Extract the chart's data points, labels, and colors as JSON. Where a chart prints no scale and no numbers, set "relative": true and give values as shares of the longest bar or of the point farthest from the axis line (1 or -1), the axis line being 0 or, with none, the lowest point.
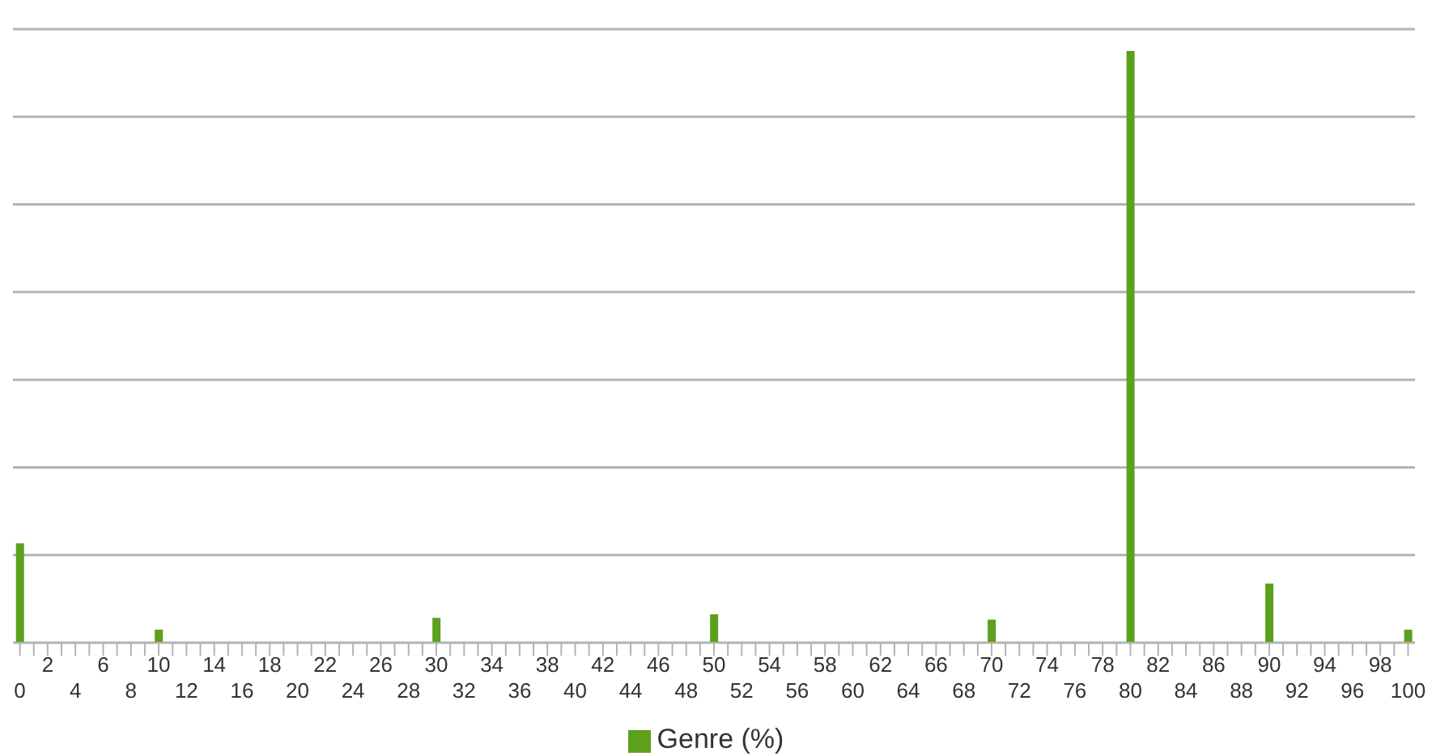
{
  "chart_data": {
    "type": "bar",
    "relative": true,
    "grid": "y",
    "legend": "bottom",
    "categories": [
      "0",
      null,
      "2",
      null,
      "4",
      null,
      "6",
      null,
      "8",
      null,
      "10",
      null,
      "12",
      null,
      "14",
      null,
      "16",
      null,
      "18",
      null,
      "20",
      null,
      "22",
      null,
      "24",
      null,
      "26",
      null,
      "28",
      null,
      "30",
      null,
      "32",
      null,
      "34",
      null,
      "36",
      null,
      "38",
      null,
      "40",
      null,
      "42",
      null,
      "44",
      null,
      "46",
      null,
      "48",
      null,
      "50",
      null,
      "52",
      null,
      "54",
      null,
      "56",
      null,
      "58",
      null,
      "60",
      null,
      "62",
      null,
      "64",
      null,
      "66",
      null,
      "68",
      null,
      "70",
      null,
      "72",
      null,
      "74",
      null,
      "76",
      null,
      "78",
      null,
      "80",
      null,
      "82",
      null,
      "84",
      null,
      "86",
      null,
      "88",
      null,
      "90",
      null,
      "92",
      null,
      "94",
      null,
      "96",
      null,
      "98",
      null,
      "100"
    ],
    "series": [
      {
        "name": "Genre (%)",
        "color": "#5ca01c",
        "values": [
          0.168,
          0,
          0,
          0,
          0,
          0,
          0,
          0,
          0,
          0,
          0.022,
          0,
          0,
          0,
          0,
          0,
          0,
          0,
          0,
          0,
          0,
          0,
          0,
          0,
          0,
          0,
          0,
          0,
          0,
          0,
          0.042,
          0,
          0,
          0,
          0,
          0,
          0,
          0,
          0,
          0,
          0,
          0,
          0,
          0,
          0,
          0,
          0,
          0,
          0,
          0,
          0.048,
          0,
          0,
          0,
          0,
          0,
          0,
          0,
          0,
          0,
          0,
          0,
          0,
          0,
          0,
          0,
          0,
          0,
          0,
          0,
          0.039,
          0,
          0,
          0,
          0,
          0,
          0,
          0,
          0,
          0,
          1,
          0,
          0,
          0,
          0,
          0,
          0,
          0,
          0,
          0,
          0.1,
          0,
          0,
          0,
          0,
          0,
          0,
          0,
          0,
          0,
          0.022
        ]
      }
    ]
  }
}
